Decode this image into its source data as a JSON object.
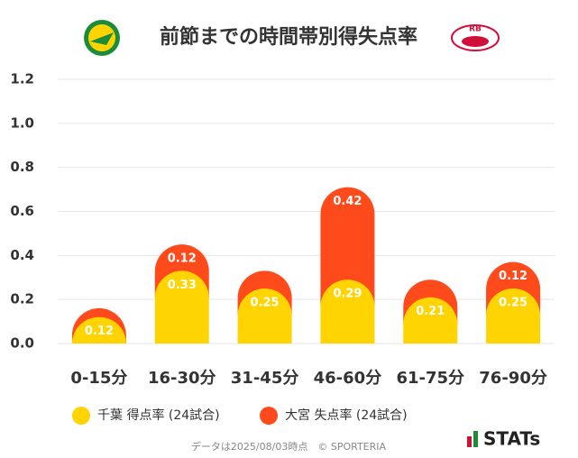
{
  "chart_data": {
    "type": "stacked-bar",
    "title": "前節までの時間帯別得失点率",
    "categories": [
      "0-15分",
      "16-30分",
      "31-45分",
      "46-60分",
      "61-75分",
      "76-90分"
    ],
    "series": [
      {
        "name": "千葉 得点率 (24試合)",
        "color": "#ffd400",
        "values": [
          0.12,
          0.33,
          0.25,
          0.29,
          0.21,
          0.25
        ]
      },
      {
        "name": "大宮 失点率 (24試合)",
        "color": "#ff4a1c",
        "values": [
          0.04,
          0.12,
          0.08,
          0.42,
          0.08,
          0.12
        ],
        "value_labels": [
          null,
          "0.12",
          null,
          "0.42",
          null,
          "0.12"
        ]
      }
    ],
    "ylim": [
      0,
      1.2
    ],
    "yticks": [
      {
        "value": 0,
        "label": "0.0"
      },
      0.2,
      0.4,
      0.6,
      0.8,
      {
        "value": 1,
        "label": "1.0"
      },
      1.2
    ],
    "grid": true,
    "footer": "データは2025/08/03時点　© SPORTERIA",
    "brand": "STATs"
  }
}
